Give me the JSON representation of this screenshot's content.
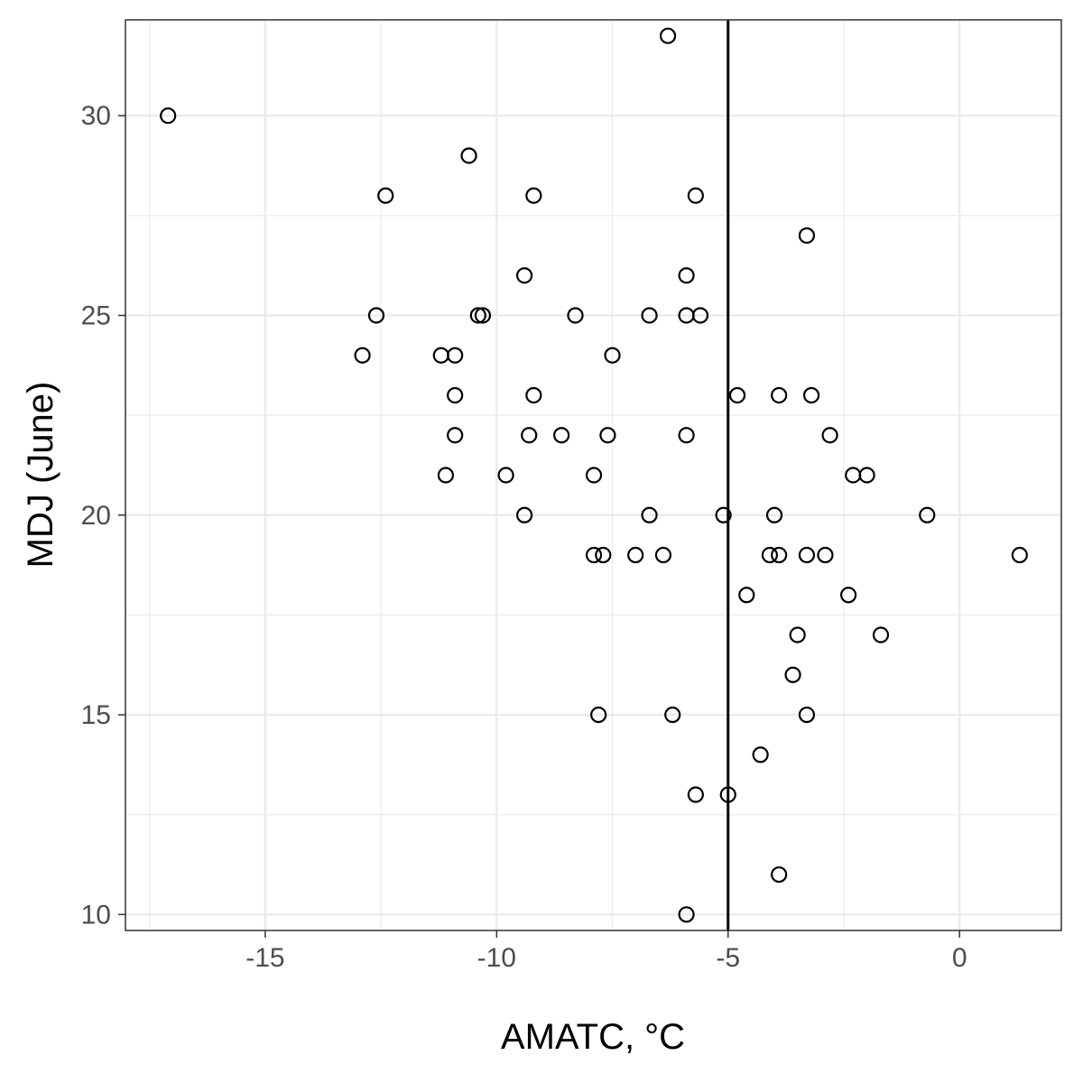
{
  "chart_data": {
    "type": "scatter",
    "title": "",
    "xlabel": "AMATC, °C",
    "ylabel": "MDJ (June)",
    "xlim": [
      -18.02,
      2.2
    ],
    "ylim": [
      9.6,
      32.4
    ],
    "x_ticks": [
      -15,
      -10,
      -5,
      0
    ],
    "x_tick_labels": [
      "-15",
      "-10",
      "-5",
      "0"
    ],
    "y_ticks": [
      10,
      15,
      20,
      25,
      30
    ],
    "y_tick_labels": [
      "10",
      "15",
      "20",
      "25",
      "30"
    ],
    "x_minor_ticks": [
      -17.5,
      -12.5,
      -7.5,
      -2.5,
      2.5
    ],
    "y_minor_ticks": [
      12.5,
      17.5,
      22.5,
      27.5,
      32.5
    ],
    "grid": true,
    "vline": -5,
    "colors": {
      "point_stroke": "#000000",
      "grid": "#ebebeb",
      "panel_border": "#333333",
      "vline": "#000000"
    },
    "points": [
      {
        "x": -17.1,
        "y": 30
      },
      {
        "x": -12.9,
        "y": 24
      },
      {
        "x": -12.6,
        "y": 25
      },
      {
        "x": -12.4,
        "y": 28
      },
      {
        "x": -11.2,
        "y": 24
      },
      {
        "x": -11.1,
        "y": 21
      },
      {
        "x": -10.9,
        "y": 24
      },
      {
        "x": -10.9,
        "y": 23
      },
      {
        "x": -10.9,
        "y": 22
      },
      {
        "x": -10.6,
        "y": 29
      },
      {
        "x": -10.4,
        "y": 25
      },
      {
        "x": -10.3,
        "y": 25
      },
      {
        "x": -9.8,
        "y": 21
      },
      {
        "x": -9.4,
        "y": 26
      },
      {
        "x": -9.4,
        "y": 20
      },
      {
        "x": -9.3,
        "y": 22
      },
      {
        "x": -9.2,
        "y": 28
      },
      {
        "x": -9.2,
        "y": 23
      },
      {
        "x": -8.6,
        "y": 22
      },
      {
        "x": -8.3,
        "y": 25
      },
      {
        "x": -7.9,
        "y": 21
      },
      {
        "x": -7.9,
        "y": 19
      },
      {
        "x": -7.8,
        "y": 15
      },
      {
        "x": -7.7,
        "y": 19
      },
      {
        "x": -7.6,
        "y": 22
      },
      {
        "x": -7.5,
        "y": 24
      },
      {
        "x": -7.0,
        "y": 19
      },
      {
        "x": -6.7,
        "y": 25
      },
      {
        "x": -6.7,
        "y": 20
      },
      {
        "x": -6.4,
        "y": 19
      },
      {
        "x": -6.3,
        "y": 32
      },
      {
        "x": -6.2,
        "y": 15
      },
      {
        "x": -5.9,
        "y": 26
      },
      {
        "x": -5.9,
        "y": 25
      },
      {
        "x": -5.9,
        "y": 22
      },
      {
        "x": -5.9,
        "y": 10
      },
      {
        "x": -5.7,
        "y": 28
      },
      {
        "x": -5.7,
        "y": 13
      },
      {
        "x": -5.6,
        "y": 25
      },
      {
        "x": -5.1,
        "y": 20
      },
      {
        "x": -5.0,
        "y": 13
      },
      {
        "x": -4.8,
        "y": 23
      },
      {
        "x": -4.6,
        "y": 18
      },
      {
        "x": -4.3,
        "y": 14
      },
      {
        "x": -4.1,
        "y": 19
      },
      {
        "x": -4.0,
        "y": 20
      },
      {
        "x": -3.9,
        "y": 23
      },
      {
        "x": -3.9,
        "y": 19
      },
      {
        "x": -3.9,
        "y": 11
      },
      {
        "x": -3.6,
        "y": 16
      },
      {
        "x": -3.5,
        "y": 17
      },
      {
        "x": -3.3,
        "y": 27
      },
      {
        "x": -3.3,
        "y": 19
      },
      {
        "x": -3.3,
        "y": 15
      },
      {
        "x": -3.2,
        "y": 23
      },
      {
        "x": -2.9,
        "y": 19
      },
      {
        "x": -2.8,
        "y": 22
      },
      {
        "x": -2.4,
        "y": 18
      },
      {
        "x": -2.3,
        "y": 21
      },
      {
        "x": -2.0,
        "y": 21
      },
      {
        "x": -1.7,
        "y": 17
      },
      {
        "x": -0.7,
        "y": 20
      },
      {
        "x": 1.3,
        "y": 19
      }
    ]
  }
}
